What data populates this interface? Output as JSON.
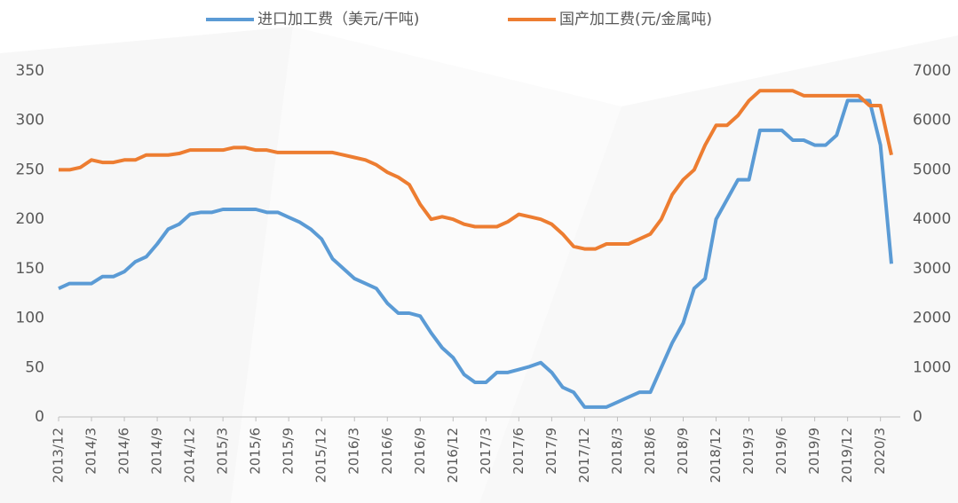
{
  "chart_data": {
    "type": "line",
    "categories": [
      "2013/12",
      null,
      null,
      "2014/3",
      null,
      null,
      "2014/6",
      null,
      null,
      "2014/9",
      null,
      null,
      "2014/12",
      null,
      null,
      "2015/3",
      null,
      null,
      "2015/6",
      null,
      null,
      "2015/9",
      null,
      null,
      "2015/12",
      null,
      null,
      "2016/3",
      null,
      null,
      "2016/6",
      null,
      null,
      "2016/9",
      null,
      null,
      "2016/12",
      null,
      null,
      "2017/3",
      null,
      null,
      "2017/6",
      null,
      null,
      "2017/9",
      null,
      null,
      "2017/12",
      null,
      null,
      "2018/3",
      null,
      null,
      "2018/6",
      null,
      null,
      "2018/9",
      null,
      null,
      "2018/12",
      null,
      null,
      "2019/3",
      null,
      null,
      "2019/6",
      null,
      null,
      "2019/9",
      null,
      null,
      "2019/12",
      null,
      null,
      "2020/3",
      null
    ],
    "series": [
      {
        "name": "进口加工费（美元/干吨)",
        "color": "#5b9bd5",
        "values": [
          130,
          135,
          135,
          135,
          142,
          142,
          147,
          157,
          162,
          175,
          190,
          195,
          205,
          207,
          207,
          210,
          210,
          210,
          210,
          207,
          207,
          202,
          197,
          190,
          180,
          160,
          150,
          140,
          135,
          130,
          115,
          105,
          105,
          102,
          85,
          70,
          60,
          43,
          35,
          35,
          45,
          45,
          48,
          51,
          55,
          45,
          30,
          25,
          10,
          10,
          10,
          15,
          20,
          25,
          25,
          50,
          75,
          95,
          130,
          140,
          200,
          220,
          240,
          240,
          290,
          290,
          290,
          280,
          280,
          275,
          275,
          285,
          320,
          320,
          320,
          275,
          155
        ]
      },
      {
        "name": "国产加工费(元/金属吨)",
        "color": "#ed7d31",
        "axis": "y2",
        "values": [
          5000,
          5000,
          5050,
          5200,
          5150,
          5150,
          5200,
          5200,
          5300,
          5300,
          5300,
          5330,
          5400,
          5400,
          5400,
          5400,
          5450,
          5450,
          5400,
          5400,
          5350,
          5350,
          5350,
          5350,
          5350,
          5350,
          5300,
          5250,
          5200,
          5100,
          4950,
          4850,
          4700,
          4300,
          4000,
          4050,
          4000,
          3900,
          3850,
          3850,
          3850,
          3950,
          4100,
          4050,
          4000,
          3900,
          3700,
          3450,
          3400,
          3400,
          3500,
          3500,
          3500,
          3600,
          3700,
          4000,
          4500,
          4800,
          5000,
          5500,
          5900,
          5900,
          6100,
          6400,
          6600,
          6600,
          6600,
          6600,
          6500,
          6500,
          6500,
          6500,
          6500,
          6500,
          6300,
          6300,
          5300
        ]
      }
    ],
    "ylim": [
      0,
      350
    ],
    "yticks": [
      0,
      50,
      100,
      150,
      200,
      250,
      300,
      350
    ],
    "y2lim": [
      0,
      7000
    ],
    "y2ticks": [
      0,
      1000,
      2000,
      3000,
      4000,
      5000,
      6000,
      7000
    ]
  }
}
